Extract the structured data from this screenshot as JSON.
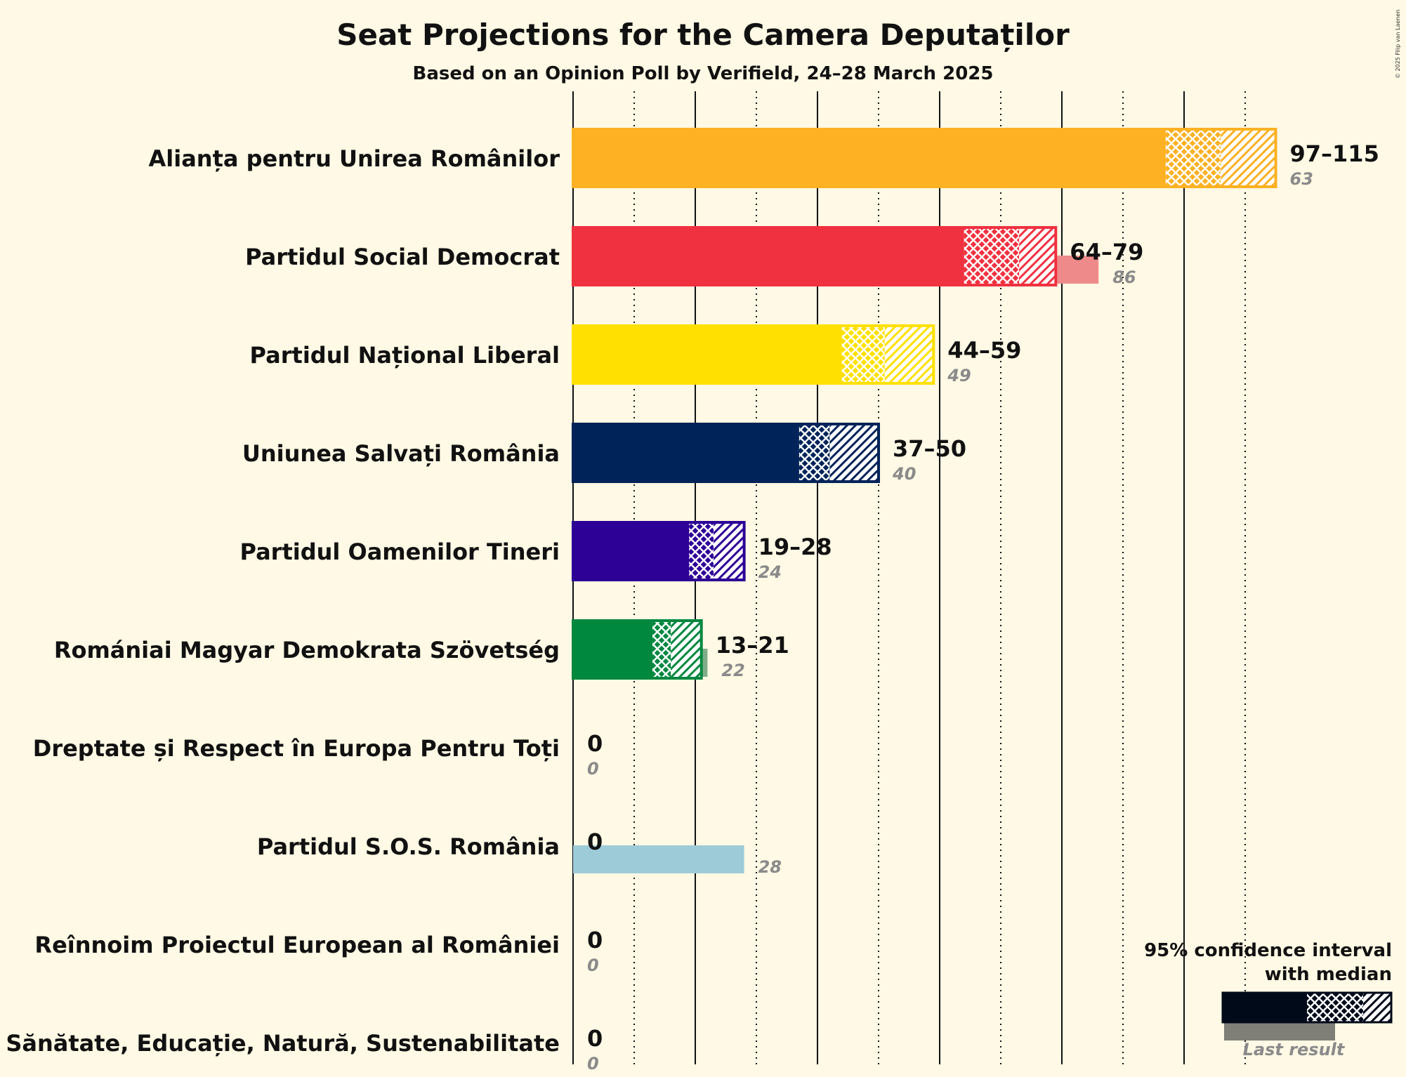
{
  "chart_data": {
    "type": "bar",
    "title": "Seat Projections for the Camera Deputaților",
    "subtitle": "Based on an Opinion Poll by Verifield, 24–28 March 2025",
    "copyright": "© 2025 Filip van Laenen",
    "xlabel": "",
    "ylabel": "",
    "xlim": [
      0,
      125
    ],
    "gridlines_solid": [
      0,
      20,
      40,
      60,
      80,
      100
    ],
    "gridlines_dotted": [
      10,
      30,
      50,
      70,
      90,
      110
    ],
    "parties": [
      {
        "name": "Alianța pentru Unirea Românilor",
        "low": 97,
        "median": 106,
        "high": 115,
        "last": 63,
        "range_label": "97–115",
        "last_label": "63",
        "color": "#fdb123",
        "last_color": "#f7cf7a"
      },
      {
        "name": "Partidul Social Democrat",
        "low": 64,
        "median": 73,
        "high": 79,
        "last": 86,
        "range_label": "64–79",
        "last_label": "86",
        "color": "#f03140",
        "last_color": "#ef8a8b"
      },
      {
        "name": "Partidul Național Liberal",
        "low": 44,
        "median": 51,
        "high": 59,
        "last": 49,
        "range_label": "44–59",
        "last_label": "49",
        "color": "#ffe000",
        "last_color": "#ebdb7a"
      },
      {
        "name": "Uniunea Salvați România",
        "low": 37,
        "median": 42,
        "high": 50,
        "last": 40,
        "range_label": "37–50",
        "last_label": "40",
        "color": "#00235a",
        "last_color": "#7f8a8f"
      },
      {
        "name": "Partidul Oamenilor Tineri",
        "low": 19,
        "median": 23,
        "high": 28,
        "last": 24,
        "range_label": "19–28",
        "last_label": "24",
        "color": "#2d0096",
        "last_color": "#9a8cb6"
      },
      {
        "name": "Romániai Magyar Demokrata Szövetség",
        "low": 13,
        "median": 16,
        "high": 21,
        "last": 22,
        "range_label": "13–21",
        "last_label": "22",
        "color": "#00883f",
        "last_color": "#80ad88"
      },
      {
        "name": "Dreptate și Respect în Europa Pentru Toți",
        "low": 0,
        "median": 0,
        "high": 0,
        "last": 0,
        "range_label": "0",
        "last_label": "0",
        "color": "#888888",
        "last_color": "#aaaaaa"
      },
      {
        "name": "Partidul S.O.S. România",
        "low": 0,
        "median": 0,
        "high": 0,
        "last": 28,
        "range_label": "0",
        "last_label": "28",
        "color": "#5fa8c7",
        "last_color": "#9ecbd8"
      },
      {
        "name": "Reînnoim Proiectul European al României",
        "low": 0,
        "median": 0,
        "high": 0,
        "last": 0,
        "range_label": "0",
        "last_label": "0",
        "color": "#888888",
        "last_color": "#aaaaaa"
      },
      {
        "name": "Sănătate, Educație, Natură, Sustenabilitate",
        "low": 0,
        "median": 0,
        "high": 0,
        "last": 0,
        "range_label": "0",
        "last_label": "0",
        "color": "#888888",
        "last_color": "#aaaaaa"
      }
    ],
    "legend": {
      "line1": "95% confidence interval",
      "line2": "with median",
      "last_result": "Last result",
      "color": "#000a19",
      "last_color": "#7f7f78",
      "position": "bottom-right"
    }
  }
}
